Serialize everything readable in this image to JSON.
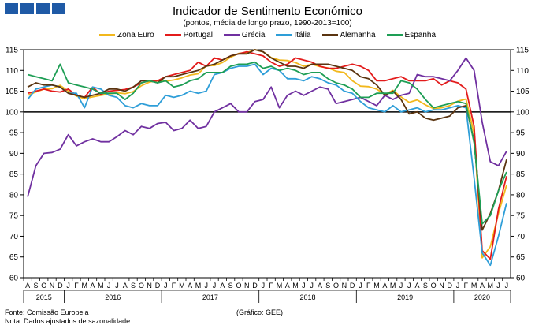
{
  "header": {
    "title": "Indicador de Sentimento Económico",
    "subtitle": "(pontos, média de longo prazo, 1990-2013=100)"
  },
  "footer": {
    "source": "Fonte: Comissão Europeia",
    "note": "Nota: Dados ajustados de sazonalidade",
    "credit": "(Gráfico: GEE)"
  },
  "chart_data": {
    "type": "line",
    "title": "Indicador de Sentimento Económico",
    "subtitle": "(pontos, média de longo prazo, 1990-2013=100)",
    "ylim": [
      60,
      115
    ],
    "yticks": [
      60,
      65,
      70,
      75,
      80,
      85,
      90,
      95,
      100,
      105,
      110,
      115
    ],
    "reference_line": 100,
    "x_month_labels": [
      "A",
      "S",
      "O",
      "N",
      "D",
      "J",
      "F",
      "M",
      "A",
      "M",
      "J",
      "J",
      "A",
      "S",
      "O",
      "N",
      "D",
      "J",
      "F",
      "M",
      "A",
      "M",
      "J",
      "J",
      "A",
      "S",
      "O",
      "N",
      "D",
      "J",
      "F",
      "M",
      "A",
      "M",
      "J",
      "J",
      "A",
      "S",
      "O",
      "N",
      "D",
      "J",
      "F",
      "M",
      "A",
      "M",
      "J",
      "J",
      "A",
      "S",
      "O",
      "N",
      "D",
      "J",
      "F",
      "M",
      "A",
      "M",
      "J",
      "J"
    ],
    "year_labels": [
      {
        "label": "2015",
        "from": 0,
        "to": 4
      },
      {
        "label": "2016",
        "from": 5,
        "to": 16
      },
      {
        "label": "2017",
        "from": 17,
        "to": 28
      },
      {
        "label": "2018",
        "from": 29,
        "to": 40
      },
      {
        "label": "2019",
        "from": 41,
        "to": 52
      },
      {
        "label": "2020",
        "from": 53,
        "to": 59
      }
    ],
    "legend_position": "top",
    "series": [
      {
        "name": "Zona Euro",
        "color": "#f2b81c",
        "values": [
          104.0,
          104.8,
          105.5,
          105.6,
          106.4,
          105.0,
          103.8,
          103.2,
          103.6,
          104.0,
          104.3,
          104.6,
          104.4,
          104.9,
          106.3,
          107.2,
          107.5,
          107.4,
          107.7,
          108.2,
          108.9,
          109.2,
          111.1,
          111.2,
          111.9,
          113.2,
          114.1,
          114.3,
          115.0,
          114.5,
          113.1,
          112.5,
          112.4,
          111.9,
          111.0,
          111.5,
          110.9,
          110.6,
          109.8,
          109.5,
          107.5,
          106.2,
          106.1,
          105.5,
          104.2,
          105.2,
          103.6,
          102.3,
          102.9,
          101.7,
          100.8,
          101.0,
          101.5,
          102.6,
          103.1,
          94.8,
          64.8,
          67.5,
          75.5,
          82.3
        ]
      },
      {
        "name": "Portugal",
        "color": "#e31b1b",
        "values": [
          104.5,
          105.0,
          105.5,
          105.0,
          104.8,
          105.5,
          104.0,
          103.5,
          106.0,
          104.2,
          105.0,
          105.2,
          105.4,
          106.0,
          107.0,
          107.5,
          107.5,
          108.5,
          109.0,
          109.5,
          110.0,
          112.0,
          111.0,
          113.0,
          112.5,
          113.5,
          114.0,
          114.5,
          114.0,
          113.5,
          112.0,
          111.0,
          111.5,
          113.0,
          112.5,
          112.0,
          111.0,
          110.5,
          110.5,
          111.0,
          111.5,
          111.0,
          110.0,
          107.5,
          107.5,
          108.0,
          108.5,
          107.5,
          107.5,
          107.5,
          108.0,
          106.5,
          107.5,
          107.0,
          105.5,
          96.5,
          66.5,
          64.5,
          76.5,
          84.5
        ]
      },
      {
        "name": "Grécia",
        "color": "#7030a0",
        "values": [
          79.5,
          87.0,
          90.0,
          90.2,
          91.0,
          94.5,
          91.8,
          92.8,
          93.5,
          92.8,
          92.8,
          94.0,
          95.5,
          94.5,
          96.5,
          96.0,
          97.2,
          97.5,
          95.5,
          96.0,
          98.0,
          96.0,
          96.5,
          100.0,
          101.0,
          102.0,
          100.0,
          100.0,
          102.5,
          103.0,
          106.0,
          101.0,
          104.0,
          105.0,
          104.0,
          105.0,
          106.0,
          105.5,
          102.0,
          102.5,
          103.0,
          103.5,
          102.5,
          101.5,
          104.0,
          103.0,
          104.0,
          104.5,
          109.0,
          108.5,
          108.5,
          108.0,
          107.5,
          110.0,
          113.0,
          110.0,
          97.5,
          88.0,
          87.0,
          90.5
        ]
      },
      {
        "name": "Itália",
        "color": "#2e9ed8",
        "values": [
          103.0,
          105.5,
          106.0,
          106.5,
          106.0,
          104.5,
          104.5,
          101.0,
          106.0,
          105.5,
          104.0,
          103.5,
          101.5,
          101.0,
          102.0,
          101.5,
          101.5,
          104.0,
          103.5,
          104.0,
          105.0,
          104.5,
          105.0,
          109.0,
          109.5,
          110.5,
          111.0,
          111.0,
          111.5,
          109.0,
          110.5,
          110.0,
          108.0,
          108.0,
          107.5,
          108.5,
          108.0,
          107.0,
          106.5,
          105.0,
          104.5,
          102.5,
          101.0,
          100.5,
          100.0,
          101.5,
          100.0,
          100.5,
          101.0,
          100.0,
          100.5,
          100.5,
          101.0,
          101.5,
          101.0,
          84.0,
          66.0,
          63.0,
          70.0,
          78.0
        ]
      },
      {
        "name": "Alemanha",
        "color": "#5a3410",
        "values": [
          106.0,
          107.0,
          106.5,
          106.5,
          106.0,
          104.5,
          104.0,
          103.5,
          104.0,
          104.5,
          105.5,
          105.5,
          105.0,
          106.0,
          107.5,
          107.5,
          107.0,
          108.5,
          108.5,
          109.0,
          109.5,
          110.0,
          111.0,
          111.5,
          112.5,
          113.5,
          114.0,
          114.0,
          115.0,
          114.5,
          113.0,
          112.0,
          111.0,
          111.0,
          110.5,
          111.5,
          111.5,
          111.5,
          111.0,
          110.5,
          110.0,
          108.5,
          108.0,
          106.5,
          104.0,
          105.0,
          103.0,
          99.5,
          100.0,
          98.5,
          98.0,
          98.5,
          99.0,
          101.0,
          101.5,
          93.0,
          71.5,
          75.5,
          81.0,
          88.5
        ]
      },
      {
        "name": "Espanha",
        "color": "#1e9e55",
        "values": [
          109.0,
          108.5,
          108.0,
          107.5,
          111.5,
          107.0,
          106.5,
          106.0,
          105.5,
          104.5,
          104.5,
          104.5,
          103.0,
          104.5,
          107.0,
          107.5,
          107.0,
          107.5,
          106.0,
          106.5,
          107.5,
          108.0,
          109.5,
          109.5,
          109.5,
          111.0,
          111.5,
          111.5,
          112.0,
          110.5,
          111.0,
          110.0,
          110.5,
          110.0,
          109.0,
          109.5,
          109.5,
          108.0,
          107.0,
          106.5,
          105.5,
          103.5,
          103.5,
          104.5,
          104.5,
          104.5,
          107.5,
          107.0,
          105.5,
          103.0,
          101.0,
          101.5,
          102.0,
          102.5,
          102.0,
          92.5,
          73.0,
          75.0,
          81.0,
          85.5
        ]
      }
    ]
  }
}
